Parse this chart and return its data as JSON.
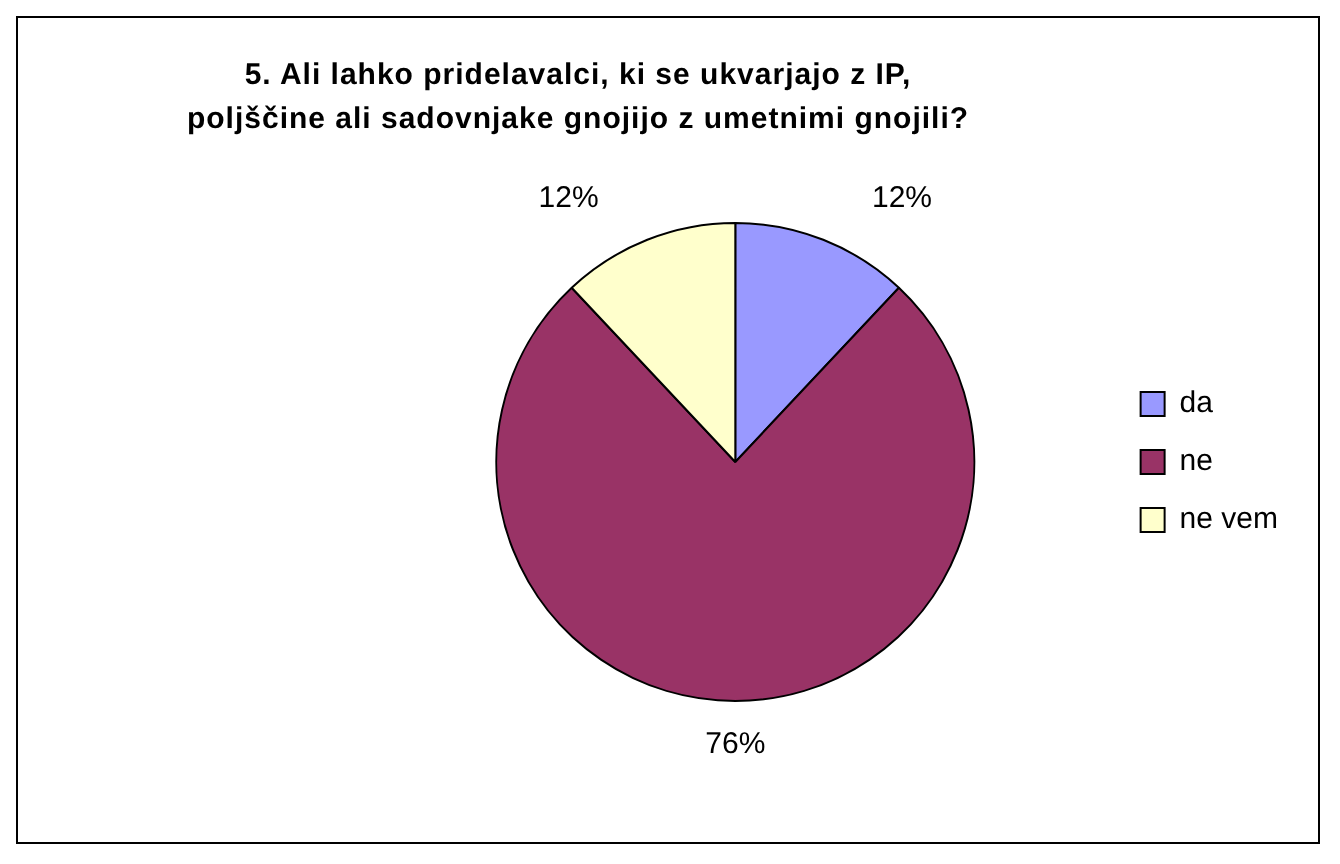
{
  "chart_data": {
    "type": "pie",
    "title": "5. Ali lahko pridelavalci, ki se ukvarjajo z IP, poljščine ali sadovnjake gnojijo z umetnimi gnojili?",
    "categories": [
      "da",
      "ne",
      "ne vem"
    ],
    "values": [
      12,
      76,
      12
    ],
    "value_labels": [
      "12%",
      "76%",
      "12%"
    ],
    "colors": [
      "#9999ff",
      "#993366",
      "#ffffcc"
    ],
    "legend": "right"
  }
}
